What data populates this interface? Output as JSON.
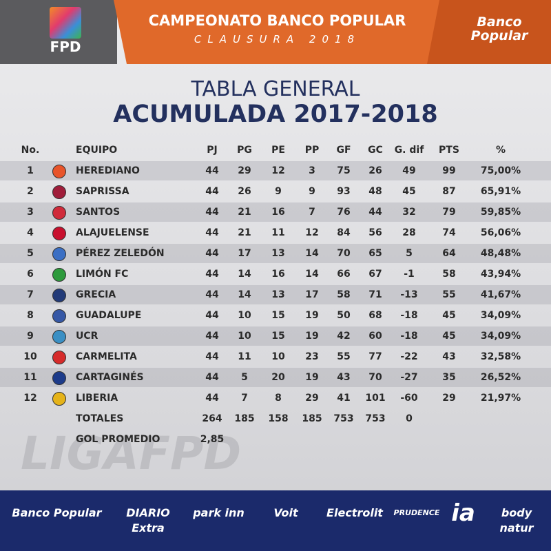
{
  "header": {
    "logo": "FPD",
    "title": "CAMPEONATO BANCO POPULAR",
    "subtitle": "CLAUSURA 2018",
    "sponsor": [
      "Banco",
      "Popular"
    ]
  },
  "heading": {
    "line1": "TABLA GENERAL",
    "line2": "ACUMULADA 2017-2018"
  },
  "table": {
    "columns": [
      "No.",
      "EQUIPO",
      "PJ",
      "PG",
      "PE",
      "PP",
      "GF",
      "GC",
      "G. dif",
      "PTS",
      "%"
    ],
    "rows": [
      [
        1,
        "HEREDIANO",
        44,
        29,
        12,
        3,
        75,
        26,
        49,
        99,
        "75,00%"
      ],
      [
        2,
        "SAPRISSA",
        44,
        26,
        9,
        9,
        93,
        48,
        45,
        87,
        "65,91%"
      ],
      [
        3,
        "SANTOS",
        44,
        21,
        16,
        7,
        76,
        44,
        32,
        79,
        "59,85%"
      ],
      [
        4,
        "ALAJUELENSE",
        44,
        21,
        11,
        12,
        84,
        56,
        28,
        74,
        "56,06%"
      ],
      [
        5,
        "PÉREZ ZELEDÓN",
        44,
        17,
        13,
        14,
        70,
        65,
        5,
        64,
        "48,48%"
      ],
      [
        6,
        "LIMÓN FC",
        44,
        14,
        16,
        14,
        66,
        67,
        -1,
        58,
        "43,94%"
      ],
      [
        7,
        "GRECIA",
        44,
        14,
        13,
        17,
        58,
        71,
        -13,
        55,
        "41,67%"
      ],
      [
        8,
        "GUADALUPE",
        44,
        10,
        15,
        19,
        50,
        68,
        -18,
        45,
        "34,09%"
      ],
      [
        9,
        "UCR",
        44,
        10,
        15,
        19,
        42,
        60,
        -18,
        45,
        "34,09%"
      ],
      [
        10,
        "CARMELITA",
        44,
        11,
        10,
        23,
        55,
        77,
        -22,
        43,
        "32,58%"
      ],
      [
        11,
        "CARTAGINÉS",
        44,
        5,
        20,
        19,
        43,
        70,
        -27,
        35,
        "26,52%"
      ],
      [
        12,
        "LIBERIA",
        44,
        7,
        8,
        29,
        41,
        101,
        -60,
        29,
        "21,97%"
      ]
    ],
    "totals": {
      "label": "TOTALES",
      "values": [
        264,
        185,
        158,
        185,
        753,
        753,
        0
      ]
    },
    "average": {
      "label": "GOL PROMEDIO",
      "value": "2,85"
    }
  },
  "watermark": "LIGAFPD",
  "footer": {
    "sponsors": [
      "Banco Popular",
      "DIARIO Extra",
      "park inn",
      "Voit",
      "Electrolit",
      "PRUDENCE",
      "ia",
      "body natur"
    ]
  }
}
